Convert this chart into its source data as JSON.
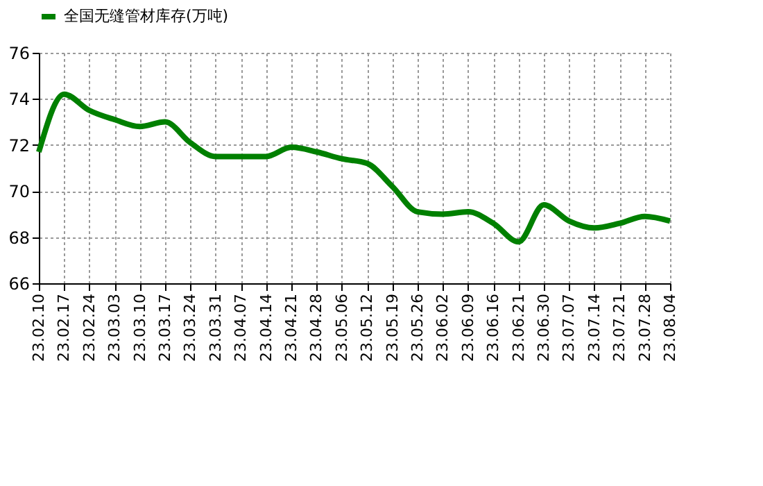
{
  "chart_data": {
    "type": "line",
    "categories": [
      "23.02.10",
      "23.02.17",
      "23.02.24",
      "23.03.03",
      "23.03.10",
      "23.03.17",
      "23.03.24",
      "23.03.31",
      "23.04.07",
      "23.04.14",
      "23.04.21",
      "23.04.28",
      "23.05.06",
      "23.05.12",
      "23.05.19",
      "23.05.26",
      "23.06.02",
      "23.06.09",
      "23.06.16",
      "23.06.21",
      "23.06.30",
      "23.07.07",
      "23.07.14",
      "23.07.21",
      "23.07.28",
      "23.08.04"
    ],
    "series": [
      {
        "name": "全国无缝管材库存(万吨)",
        "color": "#008000",
        "values": [
          71.7,
          74.2,
          73.5,
          73.1,
          72.8,
          73.0,
          72.1,
          71.5,
          71.5,
          71.5,
          71.9,
          71.7,
          71.4,
          71.2,
          70.2,
          69.1,
          69.0,
          69.1,
          68.6,
          67.8,
          69.4,
          68.7,
          68.4,
          68.6,
          68.9,
          68.7
        ]
      }
    ],
    "ylim": [
      66,
      76
    ],
    "yticks": [
      66,
      68,
      70,
      72,
      74,
      76
    ],
    "grid": true,
    "legend": "top",
    "marker": "none",
    "line_style": "solid"
  }
}
